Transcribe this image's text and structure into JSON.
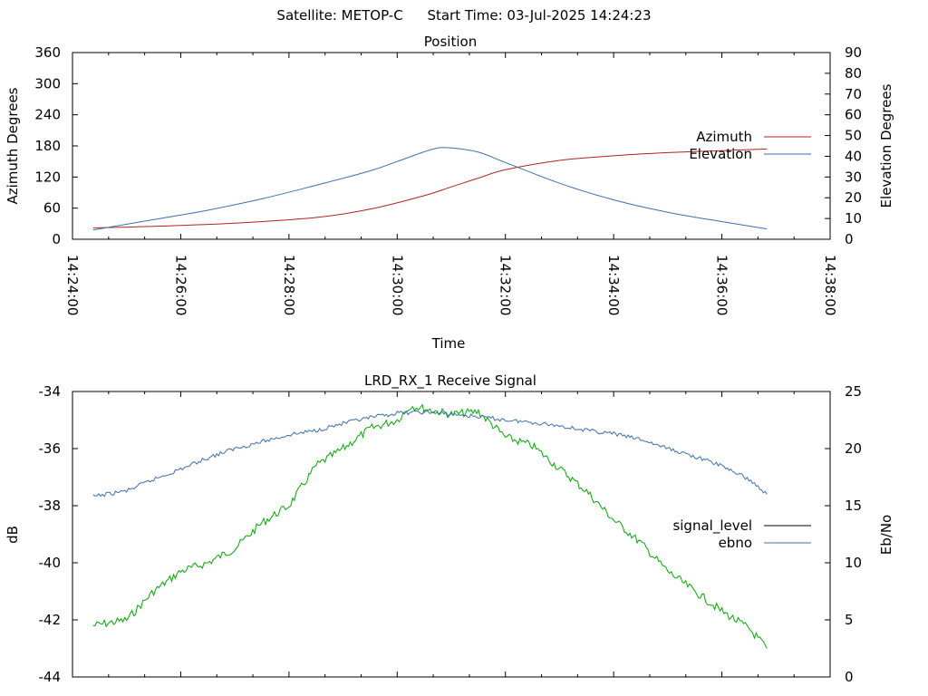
{
  "header": {
    "satellite_text": "Satellite: METOP-C",
    "start_time_text": "Start Time: 03-Jul-2025 14:24:23"
  },
  "colors": {
    "azimuth": "#b22222",
    "elevation": "#3a6fb0",
    "signal_level_legend": "#000000",
    "signal_level_line": "#00aa00",
    "ebno": "#3a6fb0",
    "axis": "#000000"
  },
  "chart_data": [
    {
      "type": "line",
      "title": "Position",
      "xlabel": "Time",
      "ylabel": "Azimuth Degrees",
      "y2label": "Elevation Degrees",
      "x_range_seconds": [
        0,
        840
      ],
      "x_tick_labels": [
        "14:24:00",
        "14:26:00",
        "14:28:00",
        "14:30:00",
        "14:32:00",
        "14:34:00",
        "14:36:00",
        "14:38:00"
      ],
      "ylim": [
        0,
        360
      ],
      "y_ticks": [
        0,
        60,
        120,
        180,
        240,
        300,
        360
      ],
      "y2lim": [
        0,
        90
      ],
      "y2_ticks": [
        0,
        10,
        20,
        30,
        40,
        50,
        60,
        70,
        80,
        90
      ],
      "legend_position": "right",
      "series": [
        {
          "name": "Azimuth",
          "axis": "y1",
          "x": [
            "14:24:23",
            "14:25:30",
            "14:27:00",
            "14:28:30",
            "14:29:30",
            "14:30:30",
            "14:31:00",
            "14:31:30",
            "14:32:00",
            "14:33:00",
            "14:34:00",
            "14:35:00",
            "14:36:00",
            "14:36:50"
          ],
          "values": [
            22,
            25,
            31,
            42,
            58,
            84,
            101,
            118,
            134,
            152,
            161,
            167,
            171,
            174
          ]
        },
        {
          "name": "Elevation",
          "axis": "y2",
          "x": [
            "14:24:23",
            "14:25:30",
            "14:26:30",
            "14:27:30",
            "14:28:30",
            "14:29:30",
            "14:30:00",
            "14:30:40",
            "14:31:00",
            "14:31:30",
            "14:32:00",
            "14:33:00",
            "14:34:00",
            "14:35:00",
            "14:36:00",
            "14:36:50"
          ],
          "values": [
            4.5,
            9.5,
            14,
            19.5,
            26,
            33,
            37.5,
            43.5,
            44,
            42,
            37,
            27,
            19,
            13,
            8.5,
            5
          ]
        }
      ]
    },
    {
      "type": "line",
      "title": "LRD_RX_1 Receive Signal",
      "ylabel": "dB",
      "y2label": "Eb/No",
      "x_range_seconds": [
        0,
        840
      ],
      "ylim": [
        -44,
        -34
      ],
      "y_ticks": [
        -44,
        -42,
        -40,
        -38,
        -36,
        -34
      ],
      "y2lim": [
        0,
        25
      ],
      "y2_ticks": [
        0,
        5,
        10,
        15,
        20,
        25
      ],
      "legend_position": "right",
      "series": [
        {
          "name": "signal_level",
          "axis": "y1",
          "x": [
            "14:24:23",
            "14:25:00",
            "14:25:30",
            "14:26:00",
            "14:26:30",
            "14:27:00",
            "14:27:30",
            "14:28:00",
            "14:28:30",
            "14:29:00",
            "14:29:30",
            "14:30:00",
            "14:30:15",
            "14:30:30",
            "14:31:00",
            "14:31:30",
            "14:32:00",
            "14:32:30",
            "14:33:00",
            "14:33:30",
            "14:34:00",
            "14:34:30",
            "14:35:00",
            "14:35:30",
            "14:36:00",
            "14:36:30",
            "14:36:50"
          ],
          "values": [
            -42.2,
            -42.0,
            -41.0,
            -40.3,
            -40.0,
            -39.5,
            -38.6,
            -38.0,
            -36.6,
            -36.0,
            -35.3,
            -35.0,
            -34.5,
            -34.6,
            -34.8,
            -34.7,
            -35.6,
            -35.9,
            -36.7,
            -37.5,
            -38.5,
            -39.3,
            -40.3,
            -41.0,
            -41.7,
            -42.3,
            -43.0
          ]
        },
        {
          "name": "ebno",
          "axis": "y2",
          "x": [
            "14:24:23",
            "14:25:00",
            "14:25:30",
            "14:26:00",
            "14:26:30",
            "14:27:00",
            "14:27:30",
            "14:28:00",
            "14:28:30",
            "14:29:00",
            "14:29:30",
            "14:30:00",
            "14:30:30",
            "14:31:00",
            "14:31:30",
            "14:32:00",
            "14:32:30",
            "14:33:00",
            "14:33:30",
            "14:34:00",
            "14:34:30",
            "14:35:00",
            "14:35:30",
            "14:36:00",
            "14:36:30",
            "14:36:50"
          ],
          "values": [
            15.8,
            16.3,
            17.3,
            18.2,
            19.2,
            20.0,
            20.6,
            21.2,
            21.6,
            22.2,
            22.7,
            23.1,
            23.2,
            23.0,
            22.8,
            22.5,
            22.3,
            22.0,
            21.6,
            21.3,
            20.8,
            20.0,
            19.3,
            18.5,
            17.3,
            16.0
          ]
        }
      ]
    }
  ]
}
